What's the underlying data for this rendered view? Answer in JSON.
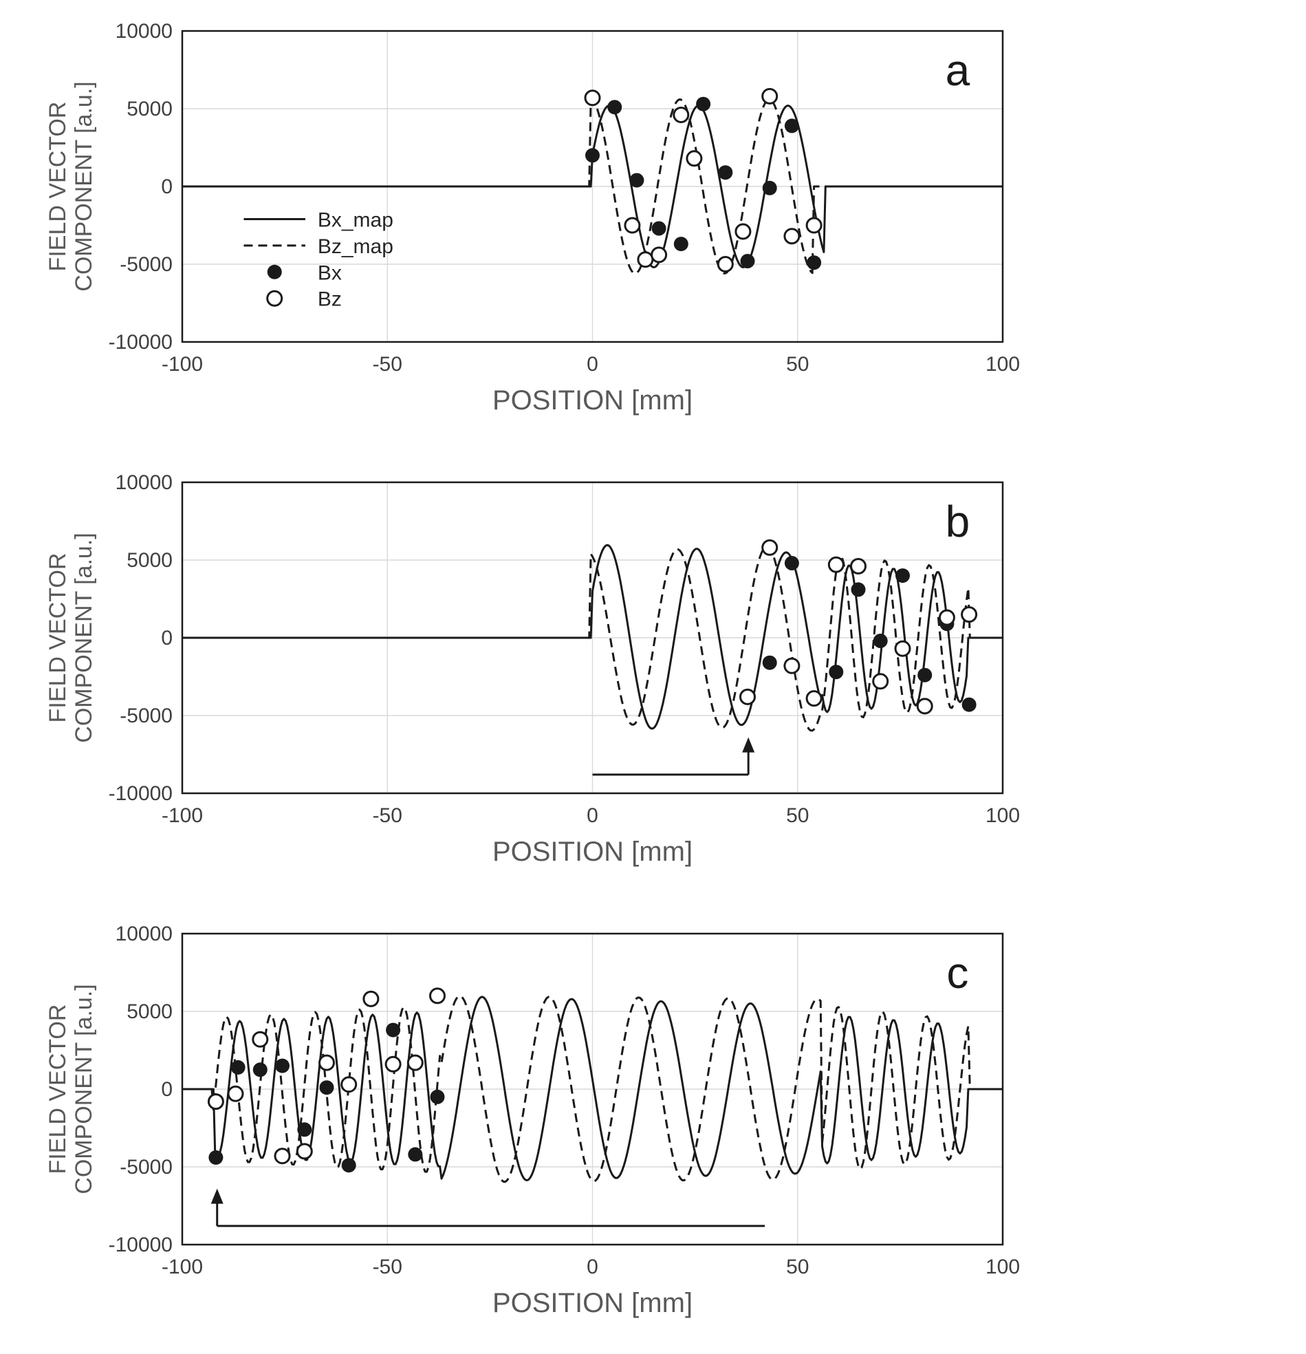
{
  "figure": {
    "background": "#ffffff",
    "colors": {
      "line": "#1a1a1a",
      "grid": "#d9d9d9",
      "axis_text": "#595959",
      "tick_text": "#404040",
      "legend_text": "#262626"
    }
  },
  "chart_data": [
    {
      "id": "a",
      "type": "line",
      "panel_label": "a",
      "xlabel": "POSITION [mm]",
      "ylabel_line1": "FIELD VECTOR",
      "ylabel_line2": "COMPONENT [a.u.]",
      "xlim": [
        -100,
        100
      ],
      "ylim": [
        -10000,
        10000
      ],
      "xticks": [
        -100,
        -50,
        0,
        50,
        100
      ],
      "yticks": [
        -10000,
        -5000,
        0,
        5000,
        10000
      ],
      "grid": true,
      "legend": {
        "visible": true,
        "entries": [
          {
            "label": "Bx_map",
            "style": "solid-line"
          },
          {
            "label": "Bz_map",
            "style": "dashed-line"
          },
          {
            "label": "Bx",
            "style": "filled-circle"
          },
          {
            "label": "Bz",
            "style": "open-circle"
          }
        ]
      },
      "series": [
        {
          "name": "Bx_map",
          "style": "solid",
          "segments": [
            {
              "x0": 0,
              "x1": 56.5,
              "amp0": 5200,
              "amp1": 5200,
              "period": 21.8,
              "phase_deg": 23
            }
          ]
        },
        {
          "name": "Bz_map",
          "style": "dashed",
          "segments": [
            {
              "x0": -0.5,
              "x1": 54,
              "amp0": 5600,
              "amp1": 5600,
              "period": 21.8,
              "phase_deg": 90
            }
          ]
        },
        {
          "name": "Bx",
          "style": "marker-filled",
          "points": [
            [
              0,
              2000
            ],
            [
              5.4,
              5100
            ],
            [
              10.8,
              400
            ],
            [
              16.2,
              -2700
            ],
            [
              21.6,
              -3700
            ],
            [
              27,
              5300
            ],
            [
              32.4,
              900
            ],
            [
              37.8,
              -4800
            ],
            [
              43.2,
              -100
            ],
            [
              48.6,
              3900
            ],
            [
              54,
              -4900
            ]
          ]
        },
        {
          "name": "Bz",
          "style": "marker-open",
          "points": [
            [
              0,
              5700
            ],
            [
              9.7,
              -2500
            ],
            [
              12.9,
              -4700
            ],
            [
              16.2,
              -4400
            ],
            [
              21.6,
              4600
            ],
            [
              24.8,
              1800
            ],
            [
              32.4,
              -5000
            ],
            [
              36.7,
              -2900
            ],
            [
              43.2,
              5800
            ],
            [
              48.6,
              -3200
            ],
            [
              54,
              -2500
            ]
          ]
        }
      ],
      "annotations": []
    },
    {
      "id": "b",
      "type": "line",
      "panel_label": "b",
      "xlabel": "POSITION [mm]",
      "ylabel_line1": "FIELD VECTOR",
      "ylabel_line2": "COMPONENT [a.u.]",
      "xlim": [
        -100,
        100
      ],
      "ylim": [
        -10000,
        10000
      ],
      "xticks": [
        -100,
        -50,
        0,
        50,
        100
      ],
      "yticks": [
        -10000,
        -5000,
        0,
        5000,
        10000
      ],
      "grid": true,
      "legend": {
        "visible": false,
        "entries": []
      },
      "series": [
        {
          "name": "Bx_map",
          "style": "solid",
          "segments": [
            {
              "x0": 0,
              "x1": 56,
              "amp0": 6000,
              "amp1": 5400,
              "period": 21.8,
              "phase_deg": 30
            },
            {
              "x0": 56,
              "x1": 91.5,
              "amp0": 4800,
              "amp1": 4100,
              "period": 10.8,
              "phase_deg": 230
            }
          ]
        },
        {
          "name": "Bz_map",
          "style": "dashed",
          "segments": [
            {
              "x0": -0.5,
              "x1": 56,
              "amp0": 5500,
              "amp1": 6000,
              "period": 21.8,
              "phase_deg": 100
            },
            {
              "x0": 56,
              "x1": 92,
              "amp0": 5400,
              "amp1": 4400,
              "period": 10.8,
              "phase_deg": 300
            }
          ]
        },
        {
          "name": "Bx",
          "style": "marker-filled",
          "points": [
            [
              43.2,
              -1600
            ],
            [
              48.6,
              4800
            ],
            [
              59.4,
              -2200
            ],
            [
              64.8,
              3100
            ],
            [
              70.2,
              -200
            ],
            [
              75.6,
              4000
            ],
            [
              81,
              -2400
            ],
            [
              86.4,
              900
            ],
            [
              91.8,
              -4300
            ]
          ]
        },
        {
          "name": "Bz",
          "style": "marker-open",
          "points": [
            [
              37.8,
              -3800
            ],
            [
              43.2,
              5800
            ],
            [
              48.6,
              -1800
            ],
            [
              54,
              -3900
            ],
            [
              59.4,
              4700
            ],
            [
              64.8,
              4600
            ],
            [
              70.2,
              -2800
            ],
            [
              75.6,
              -700
            ],
            [
              81,
              -4400
            ],
            [
              86.4,
              1300
            ],
            [
              91.8,
              1500
            ]
          ]
        }
      ],
      "annotations": [
        {
          "type": "scan-arrow",
          "line_y": -8800,
          "line_x0": 0,
          "line_x1": 38,
          "arrow_x": 38,
          "arrow_top": -6400
        }
      ]
    },
    {
      "id": "c",
      "type": "line",
      "panel_label": "c",
      "xlabel": "POSITION [mm]",
      "ylabel_line1": "FIELD VECTOR",
      "ylabel_line2": "COMPONENT [a.u.]",
      "xlim": [
        -100,
        100
      ],
      "ylim": [
        -10000,
        10000
      ],
      "xticks": [
        -100,
        -50,
        0,
        50,
        100
      ],
      "yticks": [
        -10000,
        -5000,
        0,
        5000,
        10000
      ],
      "grid": true,
      "legend": {
        "visible": false,
        "entries": []
      },
      "series": [
        {
          "name": "Bx_map",
          "style": "solid",
          "segments": [
            {
              "x0": -92,
              "x1": -37,
              "amp0": 4300,
              "amp1": 5000,
              "period": 10.8,
              "phase_deg": 250
            },
            {
              "x0": -37,
              "x1": 56,
              "amp0": 6000,
              "amp1": 5400,
              "period": 21.8,
              "phase_deg": 283
            },
            {
              "x0": 56,
              "x1": 91.5,
              "amp0": 4800,
              "amp1": 4100,
              "period": 10.8,
              "phase_deg": 230
            }
          ]
        },
        {
          "name": "Bz_map",
          "style": "dashed",
          "segments": [
            {
              "x0": -92.5,
              "x1": -37,
              "amp0": 4600,
              "amp1": 5400,
              "period": 10.8,
              "phase_deg": 340
            },
            {
              "x0": -37,
              "x1": 56,
              "amp0": 6000,
              "amp1": 5800,
              "period": 21.8,
              "phase_deg": 13
            },
            {
              "x0": 56,
              "x1": 92,
              "amp0": 5400,
              "amp1": 4400,
              "period": 10.8,
              "phase_deg": 320
            }
          ]
        },
        {
          "name": "Bx",
          "style": "marker-filled",
          "points": [
            [
              -91.8,
              -4400
            ],
            [
              -86.4,
              1400
            ],
            [
              -81,
              1250
            ],
            [
              -75.6,
              1500
            ],
            [
              -70.2,
              -2600
            ],
            [
              -64.8,
              100
            ],
            [
              -59.4,
              -4900
            ],
            [
              -48.6,
              3800
            ],
            [
              -43.2,
              -4200
            ],
            [
              -37.8,
              -500
            ]
          ]
        },
        {
          "name": "Bz",
          "style": "marker-open",
          "points": [
            [
              -91.8,
              -800
            ],
            [
              -87,
              -300
            ],
            [
              -81,
              3200
            ],
            [
              -75.6,
              -4300
            ],
            [
              -70.2,
              -4000
            ],
            [
              -64.8,
              1700
            ],
            [
              -59.4,
              300
            ],
            [
              -54,
              5800
            ],
            [
              -48.6,
              1600
            ],
            [
              -43.2,
              1700
            ],
            [
              -37.8,
              6000
            ]
          ]
        }
      ],
      "annotations": [
        {
          "type": "scan-arrow",
          "line_y": -8800,
          "line_x0": -91.5,
          "line_x1": 42,
          "arrow_x": -91.5,
          "arrow_top": -6400
        }
      ]
    }
  ]
}
